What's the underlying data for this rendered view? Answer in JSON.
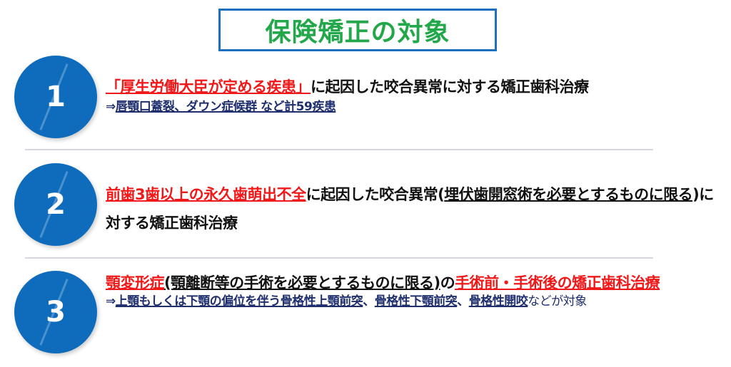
{
  "title": "保険矯正の対象",
  "colors": {
    "accent_blue": "#0f6cbd",
    "title_green": "#22a84a",
    "highlight_red": "#f01818",
    "sub_navy": "#1f2f6e"
  },
  "items": [
    {
      "number": "1",
      "main": [
        {
          "text": "「厚生労働大臣が定める疾患」",
          "style": "red u"
        },
        {
          "text": "に起因した咬合異常に対する矯正歯科治療",
          "style": ""
        }
      ],
      "sub": [
        {
          "text": "⇒",
          "style": ""
        },
        {
          "text": "唇顎口蓋裂、ダウン症候群 など計59疾患",
          "style": "u"
        }
      ]
    },
    {
      "number": "2",
      "main": [
        {
          "text": "前歯3歯以上の永久歯萌出不全",
          "style": "red u"
        },
        {
          "text": "に起因した咬合異常(",
          "style": ""
        },
        {
          "text": "埋伏歯開窓術を必要とするものに限る",
          "style": "u"
        },
        {
          "text": ")に対する矯正歯科治療",
          "style": ""
        }
      ],
      "sub": []
    },
    {
      "number": "3",
      "main": [
        {
          "text": "顎変形症",
          "style": "red u"
        },
        {
          "text": "(顎離断等の手術を必要とするものに限る)",
          "style": "u"
        },
        {
          "text": "の",
          "style": ""
        },
        {
          "text": "手術前・手術後の矯正歯科治療",
          "style": "red u"
        }
      ],
      "sub": [
        {
          "text": "⇒",
          "style": ""
        },
        {
          "text": "上顎もしくは下顎の偏位を伴う骨格性上顎前突",
          "style": "u"
        },
        {
          "text": "、",
          "style": ""
        },
        {
          "text": "骨格性下顎前突",
          "style": "u"
        },
        {
          "text": "、",
          "style": ""
        },
        {
          "text": "骨格性開咬",
          "style": "u"
        },
        {
          "text": "などが対象",
          "style": "plain-sub"
        }
      ]
    }
  ]
}
